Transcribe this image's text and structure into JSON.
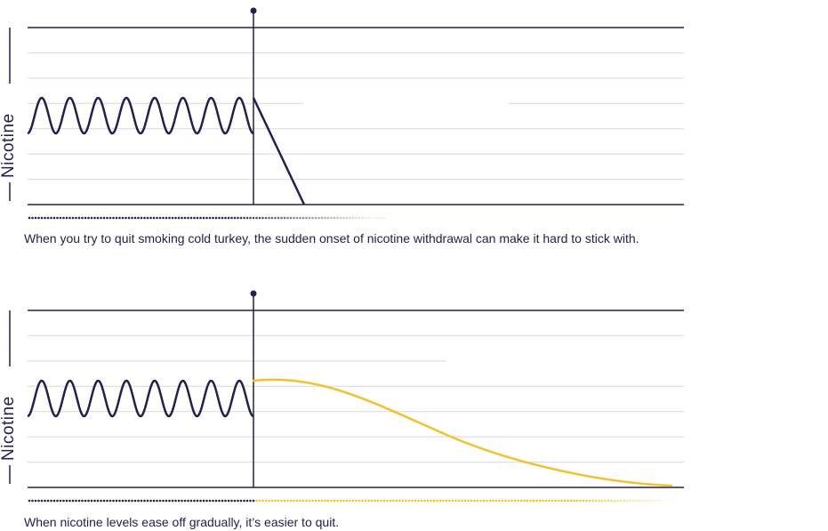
{
  "colors": {
    "ink": "#22214a",
    "grid": "#d8d8de",
    "accent": "#f2c12e"
  },
  "panels": [
    {
      "id": "cold-turkey",
      "ylabel": "Nicotine",
      "caption": "When you try to quit smoking cold turkey, the sudden onset of nicotine withdrawal can make it hard to stick with.",
      "pattern": "oscillation then steep linear drop to zero",
      "cycles": 8,
      "curve_color": "#22214a",
      "after_quit": "sharp-drop"
    },
    {
      "id": "gradual",
      "ylabel": "Nicotine",
      "caption": "When nicotine levels ease off gradually, it’s easier to quit.",
      "pattern": "oscillation then gradual decline",
      "cycles": 8,
      "curve_color": "#f2c12e",
      "after_quit": "gradual-decline"
    }
  ]
}
